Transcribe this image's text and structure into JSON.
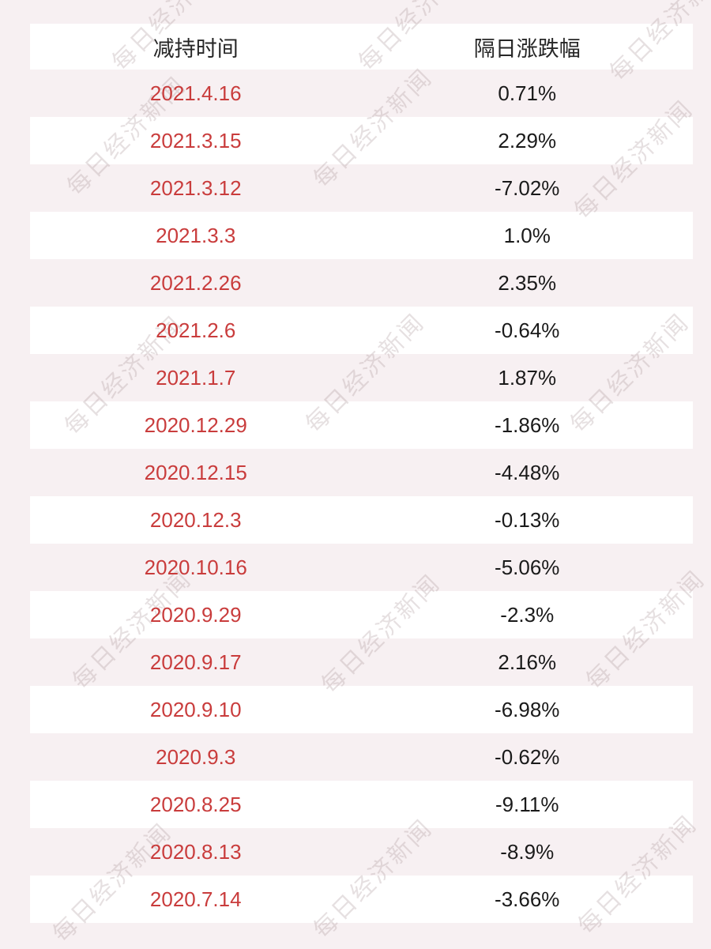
{
  "chart_data": {
    "type": "table",
    "columns": [
      "减持时间",
      "隔日涨跌幅"
    ],
    "rows": [
      [
        "2021.4.16",
        "0.71%"
      ],
      [
        "2021.3.15",
        "2.29%"
      ],
      [
        "2021.3.12",
        "-7.02%"
      ],
      [
        "2021.3.3",
        "1.0%"
      ],
      [
        "2021.2.26",
        "2.35%"
      ],
      [
        "2021.2.6",
        "-0.64%"
      ],
      [
        "2021.1.7",
        "1.87%"
      ],
      [
        "2020.12.29",
        "-1.86%"
      ],
      [
        "2020.12.15",
        "-4.48%"
      ],
      [
        "2020.12.3",
        "-0.13%"
      ],
      [
        "2020.10.16",
        "-5.06%"
      ],
      [
        "2020.9.29",
        "-2.3%"
      ],
      [
        "2020.9.17",
        "2.16%"
      ],
      [
        "2020.9.10",
        "-6.98%"
      ],
      [
        "2020.9.3",
        "-0.62%"
      ],
      [
        "2020.8.25",
        "-9.11%"
      ],
      [
        "2020.8.13",
        "-8.9%"
      ],
      [
        "2020.7.14",
        "-3.66%"
      ]
    ]
  },
  "watermark": {
    "text": "每日经济新闻"
  },
  "colors": {
    "page_bg": "#f7f0f2",
    "row_white": "#ffffff",
    "header_text": "#262626",
    "date_red": "#c93c3c",
    "value_text": "#1a1a1a",
    "watermark": "rgba(164,142,149,0.28)"
  }
}
